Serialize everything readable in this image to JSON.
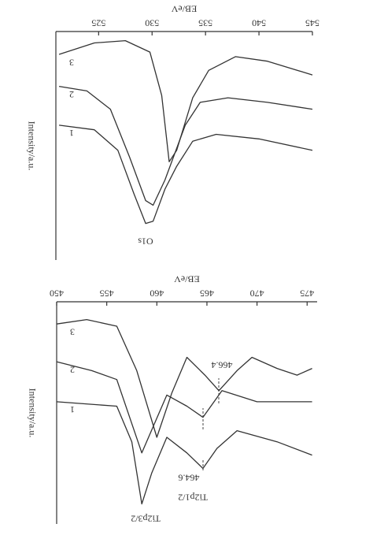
{
  "chart_data": [
    {
      "type": "line",
      "xlabel": "EB/eV",
      "ylabel": "Intensity/a.u.",
      "xlim": [
        521,
        545
      ],
      "xticks": [
        525,
        530,
        535,
        540,
        545
      ],
      "ylim": [
        0,
        100
      ],
      "annotations": [
        "O1s"
      ],
      "series": [
        {
          "name": "1",
          "color": "#333333",
          "x": [
            521.3,
            524.6,
            526.8,
            528.3,
            529.4,
            530.1,
            531.2,
            532.3,
            533.8,
            536,
            540,
            545
          ],
          "values": [
            41,
            43,
            52,
            71,
            84,
            83,
            69,
            59,
            48,
            45,
            47,
            52
          ]
        },
        {
          "name": "2",
          "color": "#333333",
          "x": [
            521.3,
            523.9,
            526.1,
            527.9,
            529.4,
            530.1,
            531.2,
            533.1,
            534.5,
            537.1,
            540.8,
            545
          ],
          "values": [
            24,
            26,
            34,
            55,
            74,
            76,
            65,
            41,
            31,
            29,
            31,
            34
          ]
        },
        {
          "name": "3",
          "color": "#333333",
          "x": [
            521.3,
            524.6,
            527.5,
            529.8,
            530.9,
            531.6,
            532.3,
            533.8,
            535.3,
            537.8,
            540.8,
            545
          ],
          "values": [
            10,
            5,
            4,
            9,
            28,
            57,
            52,
            29,
            17,
            11,
            13,
            19
          ]
        }
      ]
    },
    {
      "type": "line",
      "xlabel": "EB/eV",
      "ylabel": "Intensity/a.u.",
      "xlim": [
        450,
        476
      ],
      "xticks": [
        450,
        455,
        460,
        465,
        470,
        475
      ],
      "ylim": [
        0,
        100
      ],
      "annotations": [
        "Ti2p3/2",
        "Ti2p1/2",
        "464.6",
        "466.4"
      ],
      "series": [
        {
          "name": "1",
          "color": "#333333",
          "x": [
            450,
            456,
            457.5,
            458.5,
            459.5,
            461,
            463,
            464.6,
            466,
            468,
            472,
            475.5
          ],
          "values": [
            45,
            47,
            63,
            91,
            77,
            61,
            68,
            75,
            66,
            58,
            63,
            69
          ]
        },
        {
          "name": "2",
          "color": "#333333",
          "x": [
            450,
            453.5,
            456,
            458.5,
            461,
            463,
            464.6,
            466.5,
            470,
            475.5
          ],
          "values": [
            27,
            31,
            35,
            68,
            42,
            47,
            52,
            40,
            45,
            45
          ]
        },
        {
          "name": "3",
          "color": "#333333",
          "x": [
            450,
            453,
            456,
            458,
            460,
            461.5,
            463,
            464.8,
            466.2,
            468,
            469.5,
            472,
            474,
            475.5
          ],
          "values": [
            10,
            8,
            11,
            31,
            61,
            41,
            25,
            33,
            40,
            31,
            25,
            30,
            33,
            30
          ]
        }
      ]
    }
  ]
}
